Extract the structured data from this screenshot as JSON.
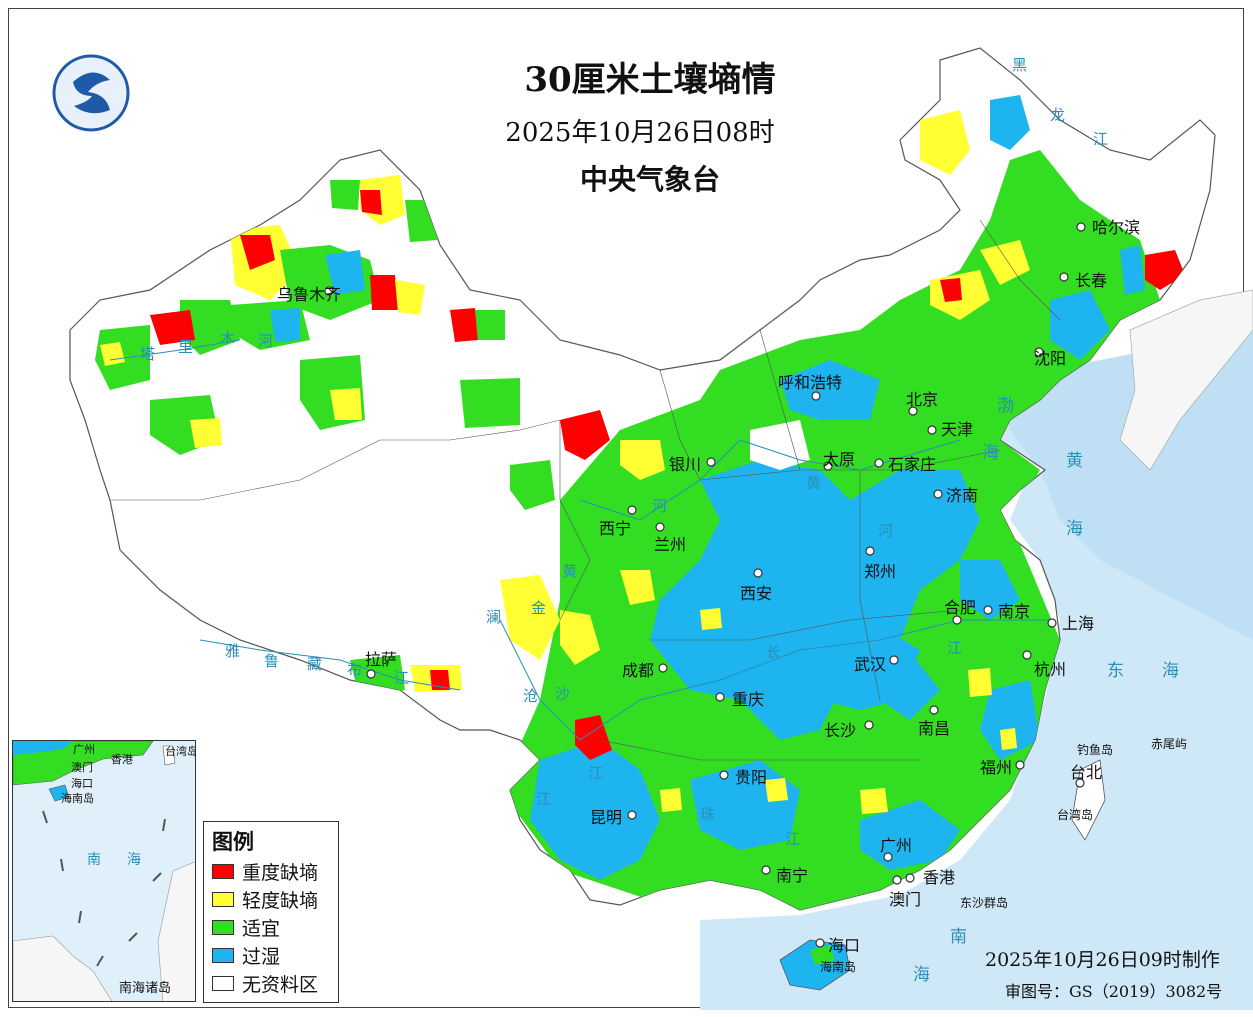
{
  "map": {
    "title": "30厘米土壤墒情",
    "datetime": "2025年10月26日08时",
    "agency": "中央气象台",
    "produced": "2025年10月26日09时制作",
    "approval": "审图号：GS（2019）3082号",
    "legend": {
      "title": "图例",
      "items": [
        {
          "label": "重度缺墒",
          "color": "#ff0000"
        },
        {
          "label": "轻度缺墒",
          "color": "#ffff33"
        },
        {
          "label": "适宜",
          "color": "#33dd22"
        },
        {
          "label": "过湿",
          "color": "#1eb4f0"
        },
        {
          "label": "无资料区",
          "color": "#ffffff"
        }
      ]
    },
    "cities": {
      "urumqi": "乌鲁木齐",
      "harbin": "哈尔滨",
      "changchun": "长春",
      "shenyang": "沈阳",
      "hohhot": "呼和浩特",
      "beijing": "北京",
      "tianjin": "天津",
      "yinchuan": "银川",
      "taiyuan": "太原",
      "shijiazhuang": "石家庄",
      "jinan": "济南",
      "xining": "西宁",
      "lanzhou": "兰州",
      "zhengzhou": "郑州",
      "xian": "西安",
      "hefei": "合肥",
      "nanjing": "南京",
      "shanghai": "上海",
      "lhasa": "拉萨",
      "chengdu": "成都",
      "wuhan": "武汉",
      "hangzhou": "杭州",
      "chongqing": "重庆",
      "changsha": "长沙",
      "nanchang": "南昌",
      "guiyang": "贵阳",
      "fuzhou": "福州",
      "taibei": "台北",
      "kunming": "昆明",
      "guangzhou": "广州",
      "hongkong": "香港",
      "macao": "澳门",
      "nanning": "南宁",
      "haikou": "海口"
    },
    "islands": {
      "diaoyu": "钓鱼岛",
      "chiwei": "赤尾屿",
      "taiwan": "台湾岛",
      "dongsha": "东沙群岛",
      "hainan": "海南岛",
      "nanhai_islands": "南海诸岛"
    },
    "seas": {
      "bohai_1": "渤",
      "bohai_2": "海",
      "huanghai_1": "黄",
      "huanghai_2": "海",
      "donghai_1": "东",
      "donghai_2": "海",
      "nanhai_1": "南",
      "nanhai_2": "海"
    },
    "rivers": {
      "heilong_1": "黑",
      "heilong_2": "龙",
      "heilong_3": "江",
      "tarim_1": "塔",
      "tarim_2": "里",
      "tarim_3": "木",
      "tarim_4": "河",
      "yellow_1": "黄",
      "yellow_2": "河",
      "yellow_3": "黄",
      "yellow_4": "河",
      "yarlung_1": "雅",
      "yarlung_2": "鲁",
      "yarlung_3": "藏",
      "yarlung_4": "布",
      "yarlung_5": "江",
      "lancang_1": "澜",
      "lancang_2": "沧",
      "lancang_3": "江",
      "jinsha_1": "金",
      "jinsha_2": "沙",
      "jinsha_3": "江",
      "yangtze_1": "长",
      "yangtze_2": "江",
      "pearl_1": "珠",
      "pearl_2": "江"
    },
    "inset": {
      "sea_1": "南",
      "sea_2": "海",
      "guangzhou": "广州",
      "hongkong": "香港",
      "macao": "澳门",
      "haikou": "海口",
      "hainan": "海南岛",
      "taiwan": "台湾岛"
    }
  }
}
